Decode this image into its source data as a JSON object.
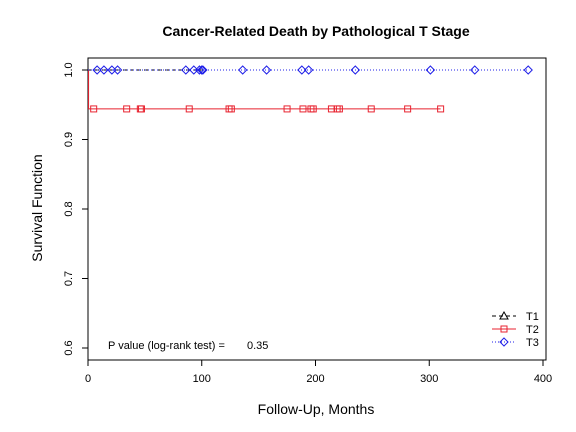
{
  "chart_data": {
    "type": "line",
    "title": "Cancer-Related Death by Pathological T Stage",
    "xlabel": "Follow-Up, Months",
    "ylabel": "Survival Function",
    "xlim": [
      0,
      400
    ],
    "ylim": [
      0.6,
      1.0
    ],
    "x_ticks": [
      0,
      100,
      200,
      300,
      400
    ],
    "y_ticks": [
      0.6,
      0.7,
      0.8,
      0.9,
      1.0
    ],
    "x_tick_labels": [
      "0",
      "100",
      "200",
      "300",
      "400"
    ],
    "y_tick_labels": [
      "0.6",
      "0.7",
      "0.8",
      "0.9",
      "1.0"
    ],
    "grid": false,
    "legend_position": "bottom-right",
    "annotation": {
      "label": "P value (log-rank test) =",
      "value": "0.35"
    },
    "series": [
      {
        "name": "T1",
        "color": "#000000",
        "line_style": "dashed",
        "marker": "triangle",
        "steps": [
          [
            0,
            1.0
          ],
          [
            100,
            1.0
          ]
        ],
        "censored": []
      },
      {
        "name": "T2",
        "color": "#e8222f",
        "line_style": "solid",
        "marker": "square",
        "steps": [
          [
            0,
            1.0
          ],
          [
            0.5,
            0.944
          ],
          [
            310,
            0.944
          ]
        ],
        "censored": [
          [
            5,
            0.944
          ],
          [
            34,
            0.944
          ],
          [
            46,
            0.944
          ],
          [
            47,
            0.944
          ],
          [
            89,
            0.944
          ],
          [
            124,
            0.944
          ],
          [
            126,
            0.944
          ],
          [
            175,
            0.944
          ],
          [
            189,
            0.944
          ],
          [
            196,
            0.944
          ],
          [
            198,
            0.944
          ],
          [
            214,
            0.944
          ],
          [
            219,
            0.944
          ],
          [
            221,
            0.944
          ],
          [
            249,
            0.944
          ],
          [
            281,
            0.944
          ],
          [
            310,
            0.944
          ]
        ]
      },
      {
        "name": "T3",
        "color": "#1f1fe8",
        "line_style": "dotted",
        "marker": "diamond",
        "steps": [
          [
            0,
            1.0
          ],
          [
            387,
            1.0
          ]
        ],
        "censored": [
          [
            8,
            1.0
          ],
          [
            14,
            1.0
          ],
          [
            21,
            1.0
          ],
          [
            26,
            1.0
          ],
          [
            86,
            1.0
          ],
          [
            93,
            1.0
          ],
          [
            98,
            1.0
          ],
          [
            100,
            1.0
          ],
          [
            101,
            1.0
          ],
          [
            136,
            1.0
          ],
          [
            157,
            1.0
          ],
          [
            188,
            1.0
          ],
          [
            194,
            1.0
          ],
          [
            235,
            1.0
          ],
          [
            301,
            1.0
          ],
          [
            340,
            1.0
          ],
          [
            387,
            1.0
          ]
        ]
      }
    ]
  }
}
